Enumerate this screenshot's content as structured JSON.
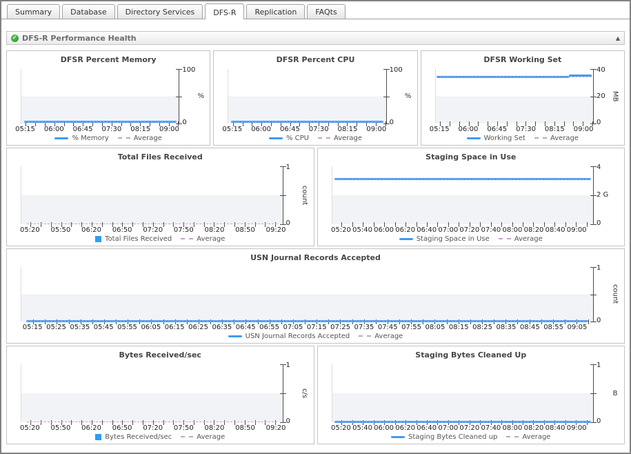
{
  "tabs": {
    "items": [
      {
        "label": "Summary",
        "active": false
      },
      {
        "label": "Database",
        "active": false
      },
      {
        "label": "Directory Services",
        "active": false
      },
      {
        "label": "DFS-R",
        "active": true
      },
      {
        "label": "Replication",
        "active": false
      },
      {
        "label": "FAQts",
        "active": false
      }
    ]
  },
  "panel": {
    "title": "DFS-R Performance Health",
    "status_icon": "green-check",
    "status_glyph": "✓",
    "collapse_icon": "up-triangle",
    "collapse_glyph": "▲"
  },
  "colors": {
    "series_line": "#3f9bf5",
    "series_bar": "#2e9cf6",
    "average": "#c8a0cc",
    "plot_band": "#f2f3f6",
    "axis": "#4a4a4a"
  },
  "chart_data": [
    {
      "type": "line",
      "title": "DFSR Percent Memory",
      "x_axis": {
        "range": [
          "05:08",
          "09:16"
        ],
        "first_tick": "05:15",
        "tick_interval_min": 15,
        "label_interval_min": 45,
        "labels": [
          "05:15",
          "06:00",
          "06:45",
          "07:30",
          "08:15",
          "09:00"
        ]
      },
      "y_axis": {
        "max": 100,
        "tick_labels": [
          "100",
          "",
          "0"
        ],
        "unit": "%",
        "unit_rotated": false
      },
      "series": {
        "name": "% Memory",
        "swatch": "line",
        "segments": [
          {
            "from": "05:12",
            "to": "09:12",
            "value": 2
          }
        ]
      },
      "average": {
        "name": "Average",
        "value": 2
      }
    },
    {
      "type": "line",
      "title": "DFSR Percent CPU",
      "x_axis": {
        "range": [
          "05:08",
          "09:16"
        ],
        "first_tick": "05:15",
        "tick_interval_min": 15,
        "label_interval_min": 45,
        "labels": [
          "05:15",
          "06:00",
          "06:45",
          "07:30",
          "08:15",
          "09:00"
        ]
      },
      "y_axis": {
        "max": 100,
        "tick_labels": [
          "100",
          "",
          "0"
        ],
        "unit": "%",
        "unit_rotated": false
      },
      "series": {
        "name": "% CPU",
        "swatch": "line",
        "segments": [
          {
            "from": "05:12",
            "to": "09:12",
            "value": 2
          }
        ]
      },
      "average": {
        "name": "Average",
        "value": 2
      }
    },
    {
      "type": "line",
      "title": "DFSR Working Set",
      "x_axis": {
        "range": [
          "05:08",
          "09:16"
        ],
        "first_tick": "05:15",
        "tick_interval_min": 15,
        "label_interval_min": 45,
        "labels": [
          "05:15",
          "06:00",
          "06:45",
          "07:30",
          "08:15",
          "09:00"
        ]
      },
      "y_axis": {
        "max": 40,
        "tick_labels": [
          "40",
          "20",
          "0"
        ],
        "unit": "MB",
        "unit_rotated": true
      },
      "series": {
        "name": "Working Set",
        "swatch": "line",
        "segments": [
          {
            "from": "05:10",
            "to": "08:38",
            "value": 34
          },
          {
            "from": "08:38",
            "to": "09:14",
            "value": 34.8
          }
        ]
      },
      "average": {
        "name": "Average",
        "value": 34
      }
    },
    {
      "type": "bar",
      "title": "Total Files Received",
      "x_axis": {
        "range": [
          "05:11",
          "09:27"
        ],
        "first_tick": "05:20",
        "tick_interval_min": 10,
        "label_interval_min": 30,
        "labels": [
          "05:20",
          "05:50",
          "06:20",
          "06:50",
          "07:20",
          "07:50",
          "08:20",
          "08:50",
          "09:20"
        ]
      },
      "y_axis": {
        "max": 1,
        "tick_labels": [
          "1",
          "",
          "0"
        ],
        "unit": "count",
        "unit_rotated": true
      },
      "series": {
        "name": "Total Files Received",
        "swatch": "square",
        "segments": []
      },
      "average": {
        "name": "Average",
        "value": 0
      }
    },
    {
      "type": "line",
      "title": "Staging Space in Use",
      "x_axis": {
        "range": [
          "05:11",
          "09:16"
        ],
        "first_tick": "05:20",
        "tick_interval_min": 10,
        "label_interval_min": 20,
        "labels": [
          "05:20",
          "05:40",
          "06:00",
          "06:20",
          "06:40",
          "07:00",
          "07:20",
          "07:40",
          "08:00",
          "08:20",
          "08:40",
          "09:00"
        ]
      },
      "y_axis": {
        "max": 4,
        "tick_labels": [
          "4",
          "2 G",
          "0"
        ],
        "unit": "",
        "unit_rotated": false
      },
      "series": {
        "name": "Staging Space in Use",
        "swatch": "line",
        "segments": [
          {
            "from": "05:13",
            "to": "09:14",
            "value": 3.1
          }
        ]
      },
      "average": {
        "name": "Average",
        "value": 3.1
      }
    },
    {
      "type": "line",
      "title": "USN Journal Records Accepted",
      "x_axis": {
        "range": [
          "05:10",
          "09:12"
        ],
        "first_tick": "05:15",
        "tick_interval_min": 5,
        "label_interval_min": 10,
        "labels": [
          "05:15",
          "05:25",
          "05:35",
          "05:45",
          "05:55",
          "06:05",
          "06:15",
          "06:25",
          "06:35",
          "06:45",
          "06:55",
          "07:05",
          "07:15",
          "07:25",
          "07:35",
          "07:45",
          "07:55",
          "08:05",
          "08:15",
          "08:25",
          "08:35",
          "08:45",
          "08:55",
          "09:05"
        ]
      },
      "y_axis": {
        "max": 1,
        "tick_labels": [
          "1",
          "",
          "0"
        ],
        "unit": "count",
        "unit_rotated": true
      },
      "series": {
        "name": "USN Journal Records Accepted",
        "swatch": "line",
        "segments": [
          {
            "from": "05:12",
            "to": "09:10",
            "value": 0
          }
        ]
      },
      "average": {
        "name": "Average",
        "value": 0
      }
    },
    {
      "type": "bar",
      "title": "Bytes Received/sec",
      "x_axis": {
        "range": [
          "05:11",
          "09:27"
        ],
        "first_tick": "05:20",
        "tick_interval_min": 10,
        "label_interval_min": 30,
        "labels": [
          "05:20",
          "05:50",
          "06:20",
          "06:50",
          "07:20",
          "07:50",
          "08:20",
          "08:50",
          "09:20"
        ]
      },
      "y_axis": {
        "max": 1,
        "tick_labels": [
          "1",
          "",
          "0"
        ],
        "unit": "c/s",
        "unit_rotated": true
      },
      "series": {
        "name": "Bytes Received/sec",
        "swatch": "square",
        "segments": []
      },
      "average": {
        "name": "Average",
        "value": 0
      }
    },
    {
      "type": "line",
      "title": "Staging Bytes Cleaned Up",
      "x_axis": {
        "range": [
          "05:11",
          "09:16"
        ],
        "first_tick": "05:20",
        "tick_interval_min": 10,
        "label_interval_min": 20,
        "labels": [
          "05:20",
          "05:40",
          "06:00",
          "06:20",
          "06:40",
          "07:00",
          "07:20",
          "07:40",
          "08:00",
          "08:20",
          "08:40",
          "09:00"
        ]
      },
      "y_axis": {
        "max": 1,
        "tick_labels": [
          "1",
          "",
          "0"
        ],
        "unit": "B",
        "unit_rotated": false
      },
      "series": {
        "name": "Staging Bytes Cleaned up",
        "swatch": "line",
        "segments": [
          {
            "from": "05:13",
            "to": "09:14",
            "value": 0
          }
        ]
      },
      "average": {
        "name": "Average",
        "value": 0
      }
    }
  ]
}
